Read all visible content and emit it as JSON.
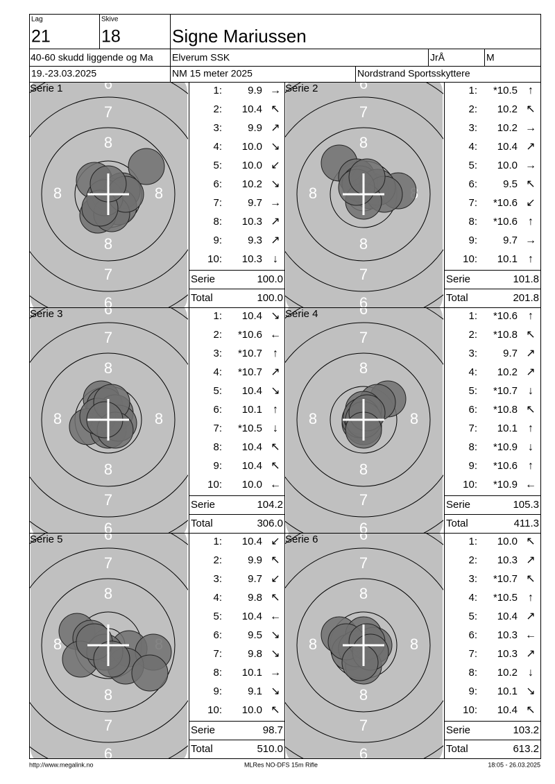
{
  "header": {
    "lag_label": "Lag",
    "lag": "21",
    "skive_label": "Skive",
    "skive": "18",
    "name": "Signe Mariussen",
    "event": "40-60 skudd liggende og Ma",
    "club": "Elverum SSK",
    "class": "JrÅ",
    "gender": "M",
    "date": "19.-23.03.2025",
    "competition": "NM 15 meter 2025",
    "organizer": "Nordstrand Sportsskyttere"
  },
  "target": {
    "ring_6": "6",
    "ring_7": "7",
    "ring_8": "8"
  },
  "series": [
    {
      "label": "Serie 1",
      "shots": [
        [
          "1:",
          "9.9",
          "→"
        ],
        [
          "2:",
          "10.4",
          "↖"
        ],
        [
          "3:",
          "9.9",
          "↗"
        ],
        [
          "4:",
          "10.0",
          "↘"
        ],
        [
          "5:",
          "10.0",
          "↙"
        ],
        [
          "6:",
          "10.2",
          "↘"
        ],
        [
          "7:",
          "9.7",
          "→"
        ],
        [
          "8:",
          "10.3",
          "↗"
        ],
        [
          "9:",
          "9.3",
          "↗"
        ],
        [
          "10:",
          "10.3",
          "↓"
        ]
      ],
      "serie_label": "Serie",
      "serie_sum": "100.0",
      "total_label": "Total",
      "total": "100.0"
    },
    {
      "label": "Serie 2",
      "shots": [
        [
          "1:",
          "*10.5",
          "↑"
        ],
        [
          "2:",
          "10.2",
          "↖"
        ],
        [
          "3:",
          "10.2",
          "→"
        ],
        [
          "4:",
          "10.4",
          "↗"
        ],
        [
          "5:",
          "10.0",
          "→"
        ],
        [
          "6:",
          "9.5",
          "↖"
        ],
        [
          "7:",
          "*10.6",
          "↙"
        ],
        [
          "8:",
          "*10.6",
          "↑"
        ],
        [
          "9:",
          "9.7",
          "→"
        ],
        [
          "10:",
          "10.1",
          "↑"
        ]
      ],
      "serie_label": "Serie",
      "serie_sum": "101.8",
      "total_label": "Total",
      "total": "201.8"
    },
    {
      "label": "Serie 3",
      "shots": [
        [
          "1:",
          "10.4",
          "↘"
        ],
        [
          "2:",
          "*10.6",
          "←"
        ],
        [
          "3:",
          "*10.7",
          "↑"
        ],
        [
          "4:",
          "*10.7",
          "↗"
        ],
        [
          "5:",
          "10.4",
          "↘"
        ],
        [
          "6:",
          "10.1",
          "↑"
        ],
        [
          "7:",
          "*10.5",
          "↓"
        ],
        [
          "8:",
          "10.4",
          "↖"
        ],
        [
          "9:",
          "10.4",
          "↖"
        ],
        [
          "10:",
          "10.0",
          "←"
        ]
      ],
      "serie_label": "Serie",
      "serie_sum": "104.2",
      "total_label": "Total",
      "total": "306.0"
    },
    {
      "label": "Serie 4",
      "shots": [
        [
          "1:",
          "*10.6",
          "↑"
        ],
        [
          "2:",
          "*10.8",
          "↖"
        ],
        [
          "3:",
          "9.7",
          "↗"
        ],
        [
          "4:",
          "10.2",
          "↗"
        ],
        [
          "5:",
          "*10.7",
          "↓"
        ],
        [
          "6:",
          "*10.8",
          "↖"
        ],
        [
          "7:",
          "10.1",
          "↑"
        ],
        [
          "8:",
          "*10.9",
          "↓"
        ],
        [
          "9:",
          "*10.6",
          "↑"
        ],
        [
          "10:",
          "*10.9",
          "←"
        ]
      ],
      "serie_label": "Serie",
      "serie_sum": "105.3",
      "total_label": "Total",
      "total": "411.3"
    },
    {
      "label": "Serie 5",
      "shots": [
        [
          "1:",
          "10.4",
          "↙"
        ],
        [
          "2:",
          "9.9",
          "↖"
        ],
        [
          "3:",
          "9.7",
          "↙"
        ],
        [
          "4:",
          "9.8",
          "↖"
        ],
        [
          "5:",
          "10.4",
          "←"
        ],
        [
          "6:",
          "9.5",
          "↘"
        ],
        [
          "7:",
          "9.8",
          "↘"
        ],
        [
          "8:",
          "10.1",
          "→"
        ],
        [
          "9:",
          "9.1",
          "↘"
        ],
        [
          "10:",
          "10.0",
          "↖"
        ]
      ],
      "serie_label": "Serie",
      "serie_sum": "98.7",
      "total_label": "Total",
      "total": "510.0"
    },
    {
      "label": "Serie 6",
      "shots": [
        [
          "1:",
          "10.0",
          "↖"
        ],
        [
          "2:",
          "10.3",
          "↗"
        ],
        [
          "3:",
          "*10.7",
          "↖"
        ],
        [
          "4:",
          "*10.5",
          "↑"
        ],
        [
          "5:",
          "10.4",
          "↗"
        ],
        [
          "6:",
          "10.3",
          "←"
        ],
        [
          "7:",
          "10.3",
          "↗"
        ],
        [
          "8:",
          "10.2",
          "↓"
        ],
        [
          "9:",
          "10.1",
          "↘"
        ],
        [
          "10:",
          "10.4",
          "↖"
        ]
      ],
      "serie_label": "Serie",
      "serie_sum": "103.2",
      "total_label": "Total",
      "total": "613.2"
    }
  ],
  "footer": {
    "url": "http://www.megalink.no",
    "program": "MLRes NO-DFS 15m Rifle",
    "timestamp": "18:05 - 26.03.2025"
  }
}
